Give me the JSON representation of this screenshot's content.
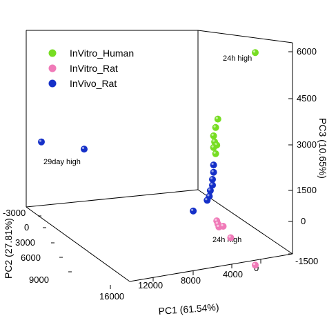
{
  "chart_data": {
    "type": "scatter",
    "projection": "3d",
    "title": "",
    "axes": {
      "x": {
        "label": "PC1 (61.54%)",
        "ticks": [
          "16000",
          "12000",
          "8000",
          "4000",
          "0"
        ]
      },
      "y": {
        "label": "PC2 (27.81%)",
        "ticks": [
          "-3000",
          "0",
          "3000",
          "6000",
          "9000"
        ]
      },
      "z": {
        "label": "PC3 (10.65%)",
        "ticks": [
          "6000",
          "4500",
          "3000",
          "1500",
          "0",
          "-1500"
        ]
      }
    },
    "legend": {
      "position": "top-left",
      "entries": [
        {
          "name": "InVitro_Human",
          "color": "#77dd22"
        },
        {
          "name": "InVitro_Rat",
          "color": "#f07ab8"
        },
        {
          "name": "InVivo_Rat",
          "color": "#1530c8"
        }
      ]
    },
    "annotations": [
      {
        "text": "24h  high",
        "series": "InVitro_Human"
      },
      {
        "text": "29day high",
        "series": "InVivo_Rat"
      },
      {
        "text": "24h  high",
        "series": "InVitro_Rat"
      }
    ],
    "series": [
      {
        "name": "InVitro_Human",
        "color": "#77dd22",
        "points": [
          {
            "x": 0,
            "y": 0,
            "z": 5800
          },
          {
            "x": 3500,
            "y": 0,
            "z": 3300
          },
          {
            "x": 3700,
            "y": 0,
            "z": 3000
          },
          {
            "x": 3900,
            "y": 0,
            "z": 2700
          },
          {
            "x": 3800,
            "y": 0,
            "z": 2500
          },
          {
            "x": 3600,
            "y": 0,
            "z": 2400
          },
          {
            "x": 3900,
            "y": 0,
            "z": 2300
          },
          {
            "x": 3700,
            "y": 0,
            "z": 2100
          }
        ]
      },
      {
        "name": "InVitro_Rat",
        "color": "#f07ab8",
        "points": [
          {
            "x": 3600,
            "y": 0,
            "z": -200
          },
          {
            "x": 3500,
            "y": 0,
            "z": -300
          },
          {
            "x": 3400,
            "y": 0,
            "z": -400
          },
          {
            "x": 3000,
            "y": 0,
            "z": -350
          },
          {
            "x": 2300,
            "y": 0,
            "z": -700
          },
          {
            "x": 0,
            "y": 0,
            "z": -1500
          }
        ]
      },
      {
        "name": "InVivo_Rat",
        "color": "#1530c8",
        "points": [
          {
            "x": 3900,
            "y": 0,
            "z": 1700
          },
          {
            "x": 3900,
            "y": 0,
            "z": 1450
          },
          {
            "x": 4000,
            "y": 0,
            "z": 1200
          },
          {
            "x": 4000,
            "y": 0,
            "z": 1000
          },
          {
            "x": 4200,
            "y": 0,
            "z": 800
          },
          {
            "x": 4300,
            "y": 0,
            "z": 600
          },
          {
            "x": 4500,
            "y": 0,
            "z": 450
          },
          {
            "x": 5800,
            "y": 0,
            "z": 0
          },
          {
            "x": 16000,
            "y": 0,
            "z": 1500
          },
          {
            "x": 20000,
            "y": 0,
            "z": 1500
          }
        ]
      }
    ]
  }
}
